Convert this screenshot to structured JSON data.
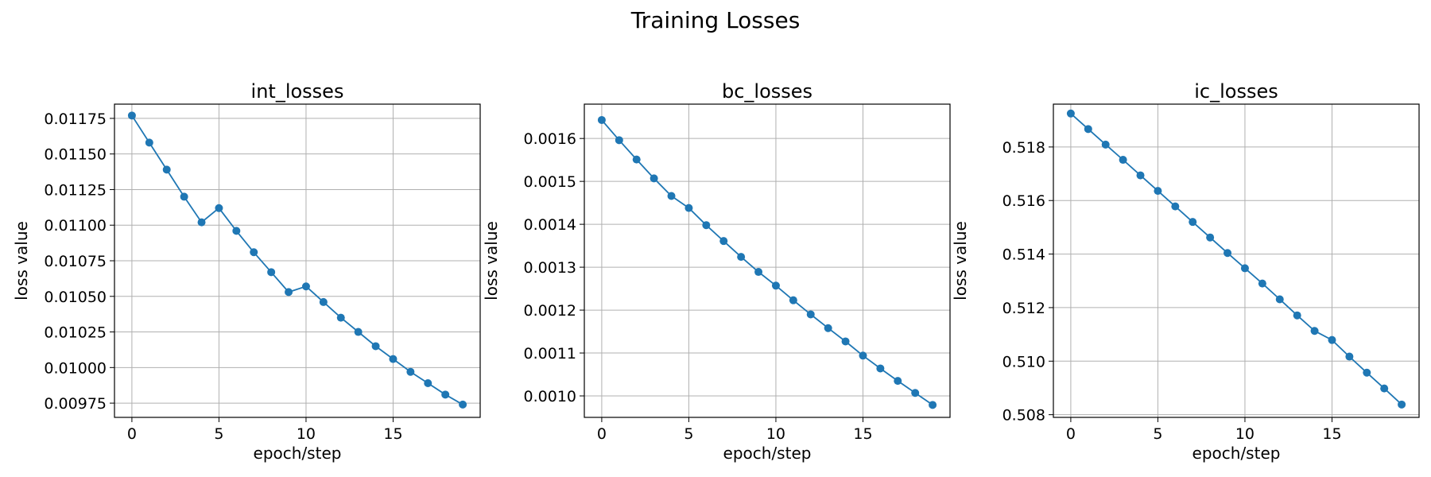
{
  "figure_title": "Training Losses",
  "chart_data": [
    {
      "type": "line",
      "title": "int_losses",
      "xlabel": "epoch/step",
      "ylabel": "loss value",
      "xlim": [
        -1,
        20
      ],
      "ylim": [
        0.00965,
        0.01185
      ],
      "xticks": [
        0,
        5,
        10,
        15
      ],
      "xtick_labels": [
        "0",
        "5",
        "10",
        "15"
      ],
      "yticks": [
        0.00975,
        0.01,
        0.01025,
        0.0105,
        0.01075,
        0.011,
        0.01125,
        0.0115,
        0.01175
      ],
      "ytick_labels": [
        "0.00975",
        "0.01000",
        "0.01025",
        "0.01050",
        "0.01075",
        "0.01100",
        "0.01125",
        "0.01150",
        "0.01175"
      ],
      "grid": true,
      "color": "#1f77b4",
      "x": [
        0,
        1,
        2,
        3,
        4,
        5,
        6,
        7,
        8,
        9,
        10,
        11,
        12,
        13,
        14,
        15,
        16,
        17,
        18,
        19
      ],
      "y": [
        0.01177,
        0.01158,
        0.01139,
        0.0112,
        0.01102,
        0.01112,
        0.01096,
        0.01081,
        0.01067,
        0.01053,
        0.01057,
        0.01046,
        0.01035,
        0.01025,
        0.01015,
        0.01006,
        0.00997,
        0.00989,
        0.00981,
        0.00974
      ]
    },
    {
      "type": "line",
      "title": "bc_losses",
      "xlabel": "epoch/step",
      "ylabel": "loss value",
      "xlim": [
        -1,
        20
      ],
      "ylim": [
        0.00095,
        0.00168
      ],
      "xticks": [
        0,
        5,
        10,
        15
      ],
      "xtick_labels": [
        "0",
        "5",
        "10",
        "15"
      ],
      "yticks": [
        0.001,
        0.0011,
        0.0012,
        0.0013,
        0.0014,
        0.0015,
        0.0016
      ],
      "ytick_labels": [
        "0.0010",
        "0.0011",
        "0.0012",
        "0.0013",
        "0.0014",
        "0.0015",
        "0.0016"
      ],
      "grid": true,
      "color": "#1f77b4",
      "x": [
        0,
        1,
        2,
        3,
        4,
        5,
        6,
        7,
        8,
        9,
        10,
        11,
        12,
        13,
        14,
        15,
        16,
        17,
        18,
        19
      ],
      "y": [
        0.001643,
        0.001596,
        0.001551,
        0.001507,
        0.001466,
        0.001438,
        0.001398,
        0.001361,
        0.001324,
        0.001289,
        0.001257,
        0.001223,
        0.00119,
        0.001158,
        0.001127,
        0.001094,
        0.001064,
        0.001035,
        0.001007,
        0.000979
      ]
    },
    {
      "type": "line",
      "title": "ic_losses",
      "xlabel": "epoch/step",
      "ylabel": "loss value",
      "xlim": [
        -1,
        20
      ],
      "ylim": [
        0.5079,
        0.5196
      ],
      "xticks": [
        0,
        5,
        10,
        15
      ],
      "xtick_labels": [
        "0",
        "5",
        "10",
        "15"
      ],
      "yticks": [
        0.508,
        0.51,
        0.512,
        0.514,
        0.516,
        0.518
      ],
      "ytick_labels": [
        "0.508",
        "0.510",
        "0.512",
        "0.514",
        "0.516",
        "0.518"
      ],
      "grid": true,
      "color": "#1f77b4",
      "x": [
        0,
        1,
        2,
        3,
        4,
        5,
        6,
        7,
        8,
        9,
        10,
        11,
        12,
        13,
        14,
        15,
        16,
        17,
        18,
        19
      ],
      "y": [
        0.51925,
        0.51867,
        0.51809,
        0.51752,
        0.51694,
        0.51636,
        0.51578,
        0.5152,
        0.51462,
        0.51404,
        0.51347,
        0.5129,
        0.51231,
        0.51171,
        0.51113,
        0.51079,
        0.51017,
        0.50957,
        0.50898,
        0.50838
      ]
    }
  ]
}
